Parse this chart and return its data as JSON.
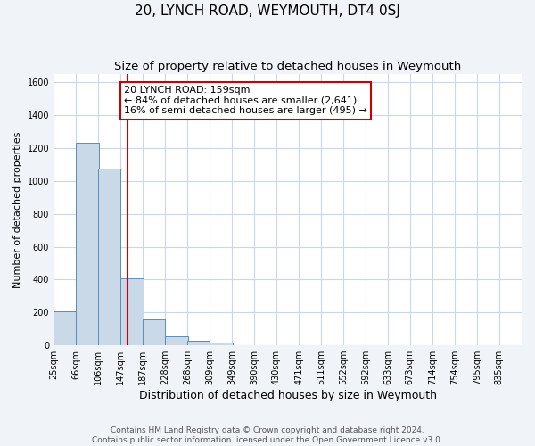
{
  "title": "20, LYNCH ROAD, WEYMOUTH, DT4 0SJ",
  "subtitle": "Size of property relative to detached houses in Weymouth",
  "xlabel": "Distribution of detached houses by size in Weymouth",
  "ylabel": "Number of detached properties",
  "bin_labels": [
    "25sqm",
    "66sqm",
    "106sqm",
    "147sqm",
    "187sqm",
    "228sqm",
    "268sqm",
    "309sqm",
    "349sqm",
    "390sqm",
    "430sqm",
    "471sqm",
    "511sqm",
    "552sqm",
    "592sqm",
    "633sqm",
    "673sqm",
    "714sqm",
    "754sqm",
    "795sqm",
    "835sqm"
  ],
  "bin_edges": [
    25,
    66,
    106,
    147,
    187,
    228,
    268,
    309,
    349,
    390,
    430,
    471,
    511,
    552,
    592,
    633,
    673,
    714,
    754,
    795,
    835
  ],
  "bar_heights": [
    205,
    1230,
    1075,
    410,
    160,
    55,
    25,
    15,
    0,
    0,
    0,
    0,
    0,
    0,
    0,
    0,
    0,
    0,
    0,
    0
  ],
  "property_size": 159,
  "bar_color": "#c9d9e8",
  "bar_edge_color": "#5b8db8",
  "vline_color": "#cc0000",
  "annotation_line1": "20 LYNCH ROAD: 159sqm",
  "annotation_line2": "← 84% of detached houses are smaller (2,641)",
  "annotation_line3": "16% of semi-detached houses are larger (495) →",
  "annotation_box_color": "#cc0000",
  "ylim": [
    0,
    1650
  ],
  "yticks": [
    0,
    200,
    400,
    600,
    800,
    1000,
    1200,
    1400,
    1600
  ],
  "footer_line1": "Contains HM Land Registry data © Crown copyright and database right 2024.",
  "footer_line2": "Contains public sector information licensed under the Open Government Licence v3.0.",
  "bg_color": "#f0f4f8",
  "plot_bg_color": "#ffffff",
  "grid_color": "#c8d8e8",
  "title_fontsize": 11,
  "subtitle_fontsize": 9.5,
  "xlabel_fontsize": 9,
  "ylabel_fontsize": 8,
  "annotation_fontsize": 8,
  "footer_fontsize": 6.5,
  "tick_fontsize": 7
}
